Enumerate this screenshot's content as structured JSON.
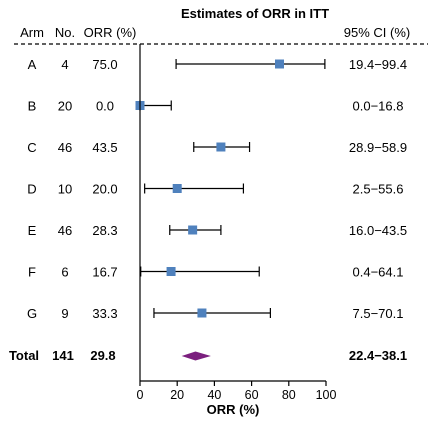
{
  "chart_data": {
    "type": "forest",
    "title": "Estimates of ORR in ITT",
    "columns": {
      "arm": "Arm",
      "n": "No.",
      "orr": "ORR (%)",
      "ci": "95% CI (%)"
    },
    "rows": [
      {
        "arm": "A",
        "n": "4",
        "orr_label": "75.0",
        "ci_label": "19.4−99.4",
        "orr": 75.0,
        "lo": 19.4,
        "hi": 99.4
      },
      {
        "arm": "B",
        "n": "20",
        "orr_label": "0.0",
        "ci_label": "0.0−16.8",
        "orr": 0.0,
        "lo": 0.0,
        "hi": 16.8
      },
      {
        "arm": "C",
        "n": "46",
        "orr_label": "43.5",
        "ci_label": "28.9−58.9",
        "orr": 43.5,
        "lo": 28.9,
        "hi": 58.9
      },
      {
        "arm": "D",
        "n": "10",
        "orr_label": "20.0",
        "ci_label": "2.5−55.6",
        "orr": 20.0,
        "lo": 2.5,
        "hi": 55.6
      },
      {
        "arm": "E",
        "n": "46",
        "orr_label": "28.3",
        "ci_label": "16.0−43.5",
        "orr": 28.3,
        "lo": 16.0,
        "hi": 43.5
      },
      {
        "arm": "F",
        "n": "6",
        "orr_label": "16.7",
        "ci_label": "0.4−64.1",
        "orr": 16.7,
        "lo": 0.4,
        "hi": 64.1
      },
      {
        "arm": "G",
        "n": "9",
        "orr_label": "33.3",
        "ci_label": "7.5−70.1",
        "orr": 33.3,
        "lo": 7.5,
        "hi": 70.1
      }
    ],
    "total": {
      "arm": "Total",
      "n": "141",
      "orr_label": "29.8",
      "ci_label": "22.4−38.1",
      "orr": 29.8,
      "lo": 22.4,
      "hi": 38.1
    },
    "xlabel": "ORR (%)",
    "xlim": [
      0,
      100
    ],
    "xticks": [
      0,
      20,
      40,
      60,
      80,
      100
    ],
    "colors": {
      "marker": "#4f81bd",
      "diamond": "#7b1f7e",
      "line": "#000000"
    }
  }
}
